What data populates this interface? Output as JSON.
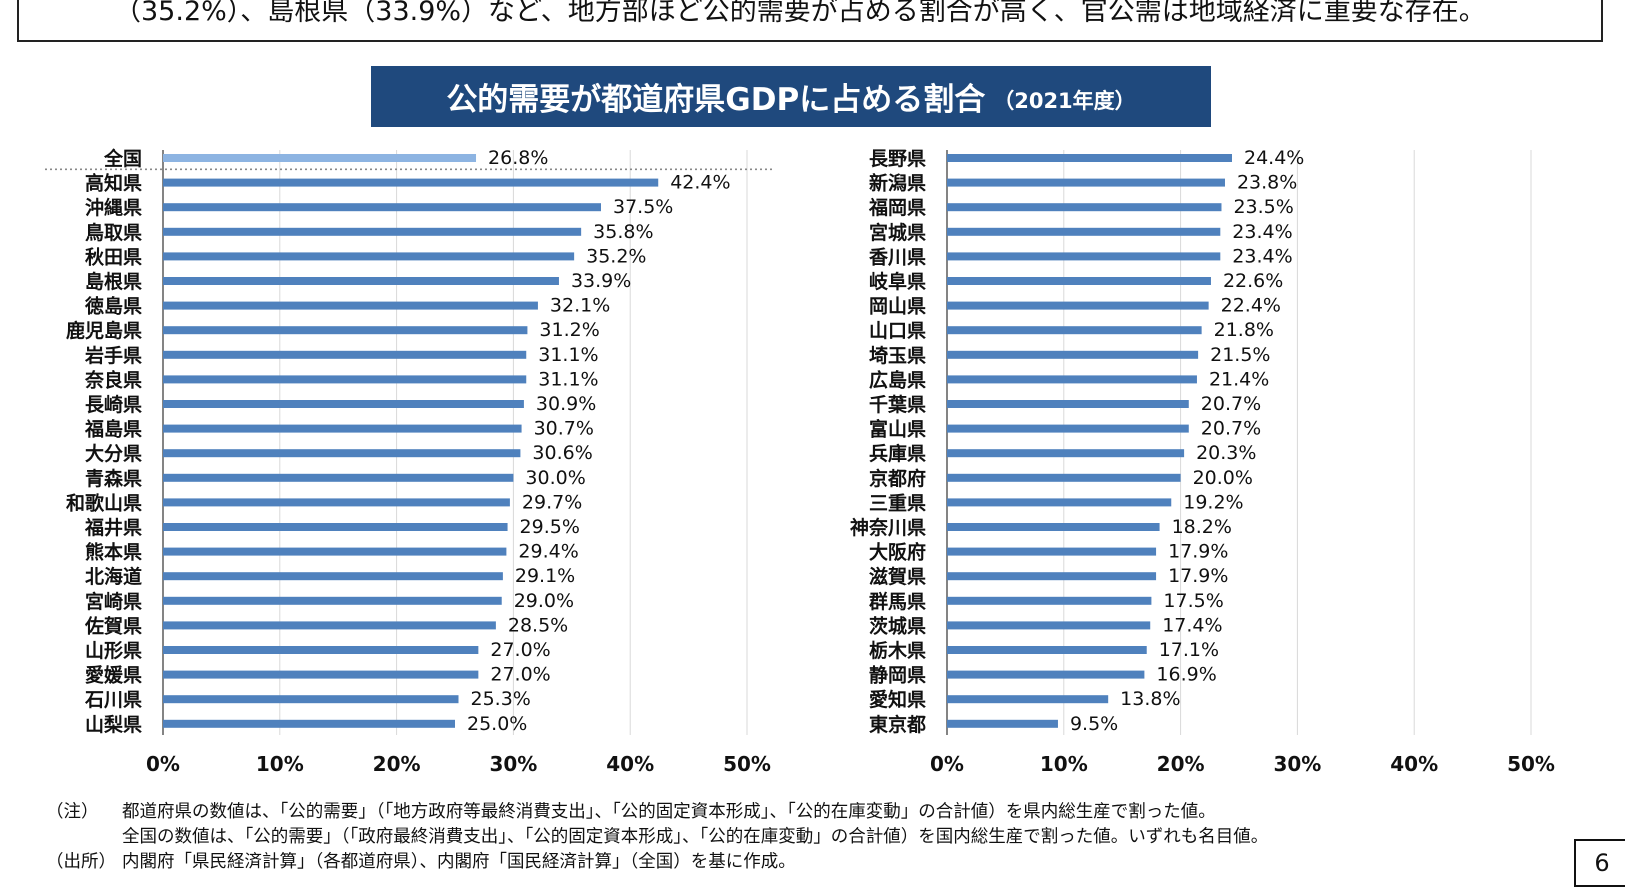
{
  "header": {
    "text": "（35.2%）、島根県（33.9%）など、地方部ほど公的需要が占める割合が高く、官公需は地域経済に重要な存在。"
  },
  "title": {
    "main": "公的需要が都道府県GDPに占める割合",
    "sub": "（2021年度）"
  },
  "colors": {
    "bar": "#4f81bd",
    "national_bar": "#8db4e2",
    "title_bg": "#1f497d"
  },
  "chart_data": [
    {
      "type": "bar",
      "orientation": "horizontal",
      "xlim": [
        0,
        50
      ],
      "x_ticks": [
        "0%",
        "10%",
        "20%",
        "30%",
        "40%",
        "50%"
      ],
      "grid": true,
      "categories": [
        "全国",
        "高知県",
        "沖縄県",
        "鳥取県",
        "秋田県",
        "島根県",
        "徳島県",
        "鹿児島県",
        "岩手県",
        "奈良県",
        "長崎県",
        "福島県",
        "大分県",
        "青森県",
        "和歌山県",
        "福井県",
        "熊本県",
        "北海道",
        "宮崎県",
        "佐賀県",
        "山形県",
        "愛媛県",
        "石川県",
        "山梨県"
      ],
      "values": [
        26.8,
        42.4,
        37.5,
        35.8,
        35.2,
        33.9,
        32.1,
        31.2,
        31.1,
        31.1,
        30.9,
        30.7,
        30.6,
        30.0,
        29.7,
        29.5,
        29.4,
        29.1,
        29.0,
        28.5,
        27.0,
        27.0,
        25.3,
        25.0
      ],
      "value_labels": [
        "26.8%",
        "42.4%",
        "37.5%",
        "35.8%",
        "35.2%",
        "33.9%",
        "32.1%",
        "31.2%",
        "31.1%",
        "31.1%",
        "30.9%",
        "30.7%",
        "30.6%",
        "30.0%",
        "29.7%",
        "29.5%",
        "29.4%",
        "29.1%",
        "29.0%",
        "28.5%",
        "27.0%",
        "27.0%",
        "25.3%",
        "25.0%"
      ]
    },
    {
      "type": "bar",
      "orientation": "horizontal",
      "xlim": [
        0,
        50
      ],
      "x_ticks": [
        "0%",
        "10%",
        "20%",
        "30%",
        "40%",
        "50%"
      ],
      "grid": true,
      "categories": [
        "長野県",
        "新潟県",
        "福岡県",
        "宮城県",
        "香川県",
        "岐阜県",
        "岡山県",
        "山口県",
        "埼玉県",
        "広島県",
        "千葉県",
        "富山県",
        "兵庫県",
        "京都府",
        "三重県",
        "神奈川県",
        "大阪府",
        "滋賀県",
        "群馬県",
        "茨城県",
        "栃木県",
        "静岡県",
        "愛知県",
        "東京都"
      ],
      "values": [
        24.4,
        23.8,
        23.5,
        23.4,
        23.4,
        22.6,
        22.4,
        21.8,
        21.5,
        21.4,
        20.7,
        20.7,
        20.3,
        20.0,
        19.2,
        18.2,
        17.9,
        17.9,
        17.5,
        17.4,
        17.1,
        16.9,
        13.8,
        9.5
      ],
      "value_labels": [
        "24.4%",
        "23.8%",
        "23.5%",
        "23.4%",
        "23.4%",
        "22.6%",
        "22.4%",
        "21.8%",
        "21.5%",
        "21.4%",
        "20.7%",
        "20.7%",
        "20.3%",
        "20.0%",
        "19.2%",
        "18.2%",
        "17.9%",
        "17.9%",
        "17.5%",
        "17.4%",
        "17.1%",
        "16.9%",
        "13.8%",
        "9.5%"
      ]
    }
  ],
  "notes": [
    {
      "head": "（注）",
      "text": "都道府県の数値は、「公的需要」（「地方政府等最終消費支出」、「公的固定資本形成」、「公的在庫変動」の合計値）を県内総生産で割った値。"
    },
    {
      "head": "",
      "text": "全国の数値は、「公的需要」（「政府最終消費支出」、「公的固定資本形成」、「公的在庫変動」の合計値）を国内総生産で割った値。いずれも名目値。"
    },
    {
      "head": "（出所）",
      "text": "内閣府「県民経済計算」（各都道府県）、内閣府「国民経済計算」（全国）を基に作成。"
    }
  ],
  "page_number": "6"
}
